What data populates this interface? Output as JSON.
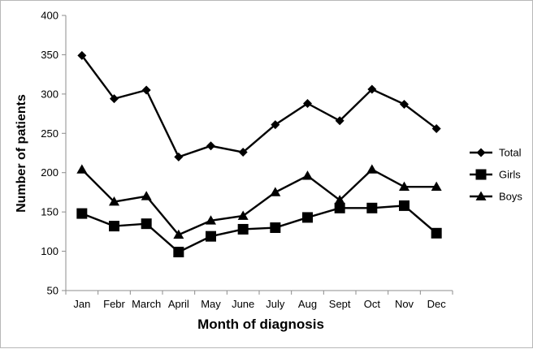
{
  "chart_data": {
    "type": "line",
    "title": "",
    "xlabel": "Month of diagnosis",
    "ylabel": "Number of patients",
    "ylim": [
      50,
      400
    ],
    "yticks": [
      50,
      100,
      150,
      200,
      250,
      300,
      350,
      400
    ],
    "categories": [
      "Jan",
      "Febr",
      "March",
      "April",
      "May",
      "June",
      "July",
      "Aug",
      "Sept",
      "Oct",
      "Nov",
      "Dec"
    ],
    "grid": false,
    "legend_position": "right",
    "series": [
      {
        "name": "Total",
        "marker": "diamond",
        "values": [
          349,
          294,
          305,
          220,
          234,
          226,
          261,
          288,
          266,
          306,
          287,
          256
        ]
      },
      {
        "name": "Girls",
        "marker": "square",
        "values": [
          148,
          132,
          135,
          99,
          119,
          128,
          130,
          143,
          155,
          155,
          158,
          123
        ]
      },
      {
        "name": "Boys",
        "marker": "triangle",
        "values": [
          204,
          163,
          170,
          121,
          139,
          145,
          175,
          196,
          165,
          204,
          182,
          182
        ]
      }
    ],
    "line_color": "#000000"
  }
}
